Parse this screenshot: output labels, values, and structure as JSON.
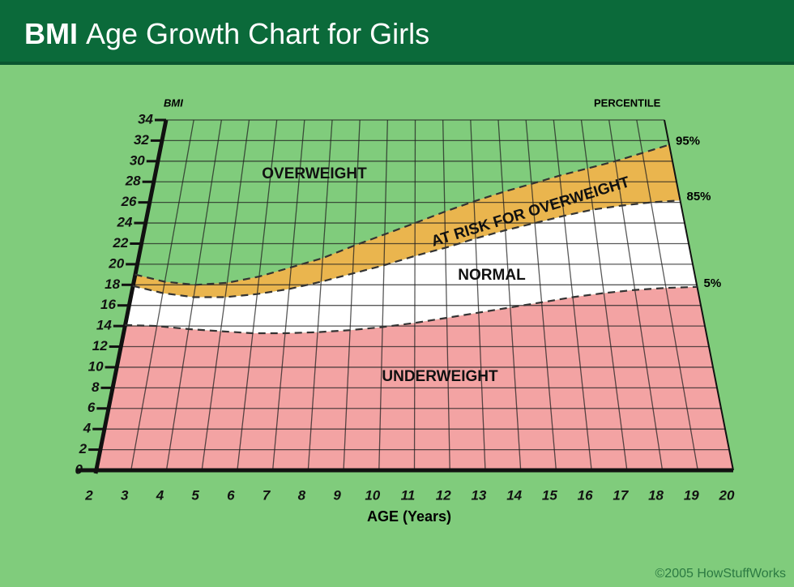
{
  "chart_data": {
    "type": "percentile-bands",
    "title": "BMI Age Growth Chart for Girls",
    "y_label": "BMI",
    "right_label": "PERCENTILE",
    "x_label": "AGE (Years)",
    "credit": "©2005 HowStuffWorks",
    "zones": [
      "OVERWEIGHT",
      "AT RISK FOR OVERWEIGHT",
      "NORMAL",
      "UNDERWEIGHT"
    ],
    "x": [
      2,
      3,
      4,
      5,
      6,
      7,
      8,
      9,
      10,
      11,
      12,
      13,
      14,
      15,
      16,
      17,
      18,
      19,
      20
    ],
    "series": [
      {
        "name": "95%",
        "color": "#eab54e",
        "values": [
          19.0,
          18.3,
          18.0,
          18.2,
          18.8,
          19.7,
          20.6,
          21.8,
          22.9,
          24.0,
          25.1,
          26.1,
          27.0,
          27.8,
          28.6,
          29.3,
          30.0,
          30.8,
          31.6
        ]
      },
      {
        "name": "85%",
        "color": "#ffffff",
        "values": [
          17.9,
          17.2,
          16.8,
          16.8,
          17.1,
          17.6,
          18.3,
          19.1,
          19.9,
          20.8,
          21.6,
          22.5,
          23.3,
          24.0,
          24.7,
          25.3,
          25.7,
          26.0,
          26.2
        ]
      },
      {
        "name": "5%",
        "color": "#f3a3a3",
        "values": [
          14.1,
          14.0,
          13.7,
          13.5,
          13.3,
          13.3,
          13.4,
          13.6,
          13.9,
          14.3,
          14.8,
          15.3,
          15.8,
          16.3,
          16.8,
          17.2,
          17.5,
          17.7,
          17.8
        ]
      }
    ],
    "xlim": [
      2,
      20
    ],
    "xticks": [
      2,
      3,
      4,
      5,
      6,
      7,
      8,
      9,
      10,
      11,
      12,
      13,
      14,
      15,
      16,
      17,
      18,
      19,
      20
    ],
    "ylim": [
      0,
      34
    ],
    "yticks": [
      0,
      2,
      4,
      6,
      8,
      10,
      12,
      14,
      16,
      18,
      20,
      22,
      24,
      26,
      28,
      30,
      32,
      34
    ],
    "grid": true
  }
}
